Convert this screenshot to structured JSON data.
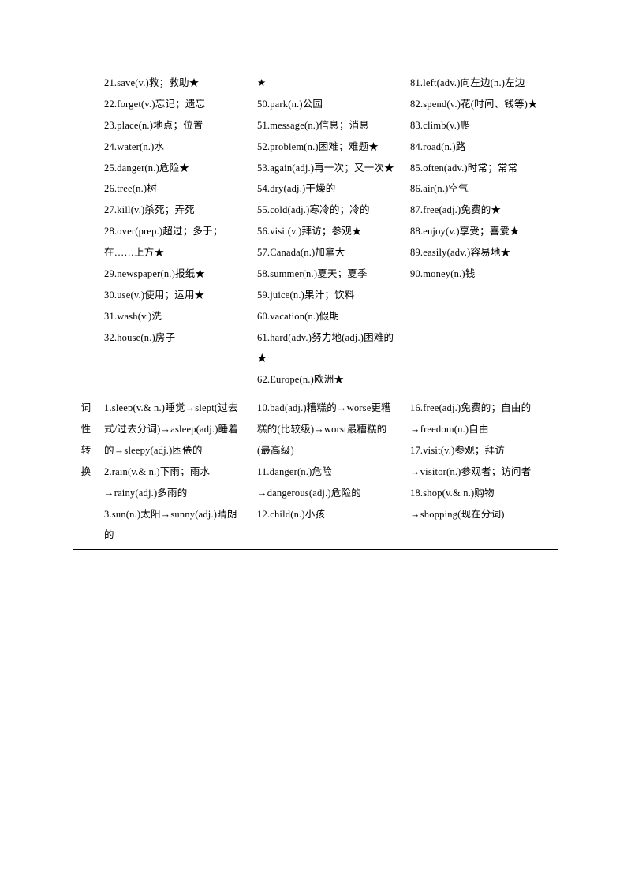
{
  "row1": {
    "label": "",
    "c1": [
      "21.save(v.)救；救助★",
      "22.forget(v.)忘记；遗忘",
      "23.place(n.)地点；位置",
      "24.water(n.)水",
      "25.danger(n.)危险★",
      "26.tree(n.)树",
      "27.kill(v.)杀死；弄死",
      "28.over(prep.)超过；多于；在……上方★",
      "29.newspaper(n.)报纸★",
      "30.use(v.)使用；运用★",
      "31.wash(v.)洗",
      "32.house(n.)房子"
    ],
    "c2": [
      "★",
      "50.park(n.)公园",
      "51.message(n.)信息；消息",
      "52.problem(n.)困难；难题★",
      "53.again(adj.)再一次；又一次★",
      "54.dry(adj.)干燥的",
      "55.cold(adj.)寒冷的；冷的",
      "56.visit(v.)拜访；参观★",
      "57.Canada(n.)加拿大",
      "58.summer(n.)夏天；夏季",
      "59.juice(n.)果汁；饮料",
      "60.vacation(n.)假期",
      "61.hard(adv.)努力地(adj.)困难的★",
      "62.Europe(n.)欧洲★"
    ],
    "c3": [
      "81.left(adv.)向左边(n.)左边",
      "82.spend(v.)花(时间、钱等)★",
      "83.climb(v.)爬",
      "84.road(n.)路",
      "85.often(adv.)时常；常常",
      "86.air(n.)空气",
      "87.free(adj.)免费的★",
      "88.enjoy(v.)享受；喜爱★",
      "89.easily(adv.)容易地★",
      "90.money(n.)钱"
    ]
  },
  "row2": {
    "labelChars": [
      "词",
      "性",
      "转",
      "换"
    ],
    "c1": [
      "1.sleep(v.& n.)睡觉→slept(过去式/过去分词)→asleep(adj.)睡着的→sleepy(adj.)困倦的",
      "2.rain(v.& n.)下雨；雨水→rainy(adj.)多雨的",
      "3.sun(n.)太阳→sunny(adj.)晴朗的"
    ],
    "c2": [
      "10.bad(adj.)糟糕的→worse更糟糕的(比较级)→worst最糟糕的(最高级)",
      "11.danger(n.)危险→dangerous(adj.)危险的",
      "12.child(n.)小孩"
    ],
    "c3": [
      "16.free(adj.)免费的；自由的→freedom(n.)自由",
      "17.visit(v.)参观；拜访→visitor(n.)参观者；访问者",
      "18.shop(v.& n.)购物→shopping(现在分词)"
    ]
  }
}
